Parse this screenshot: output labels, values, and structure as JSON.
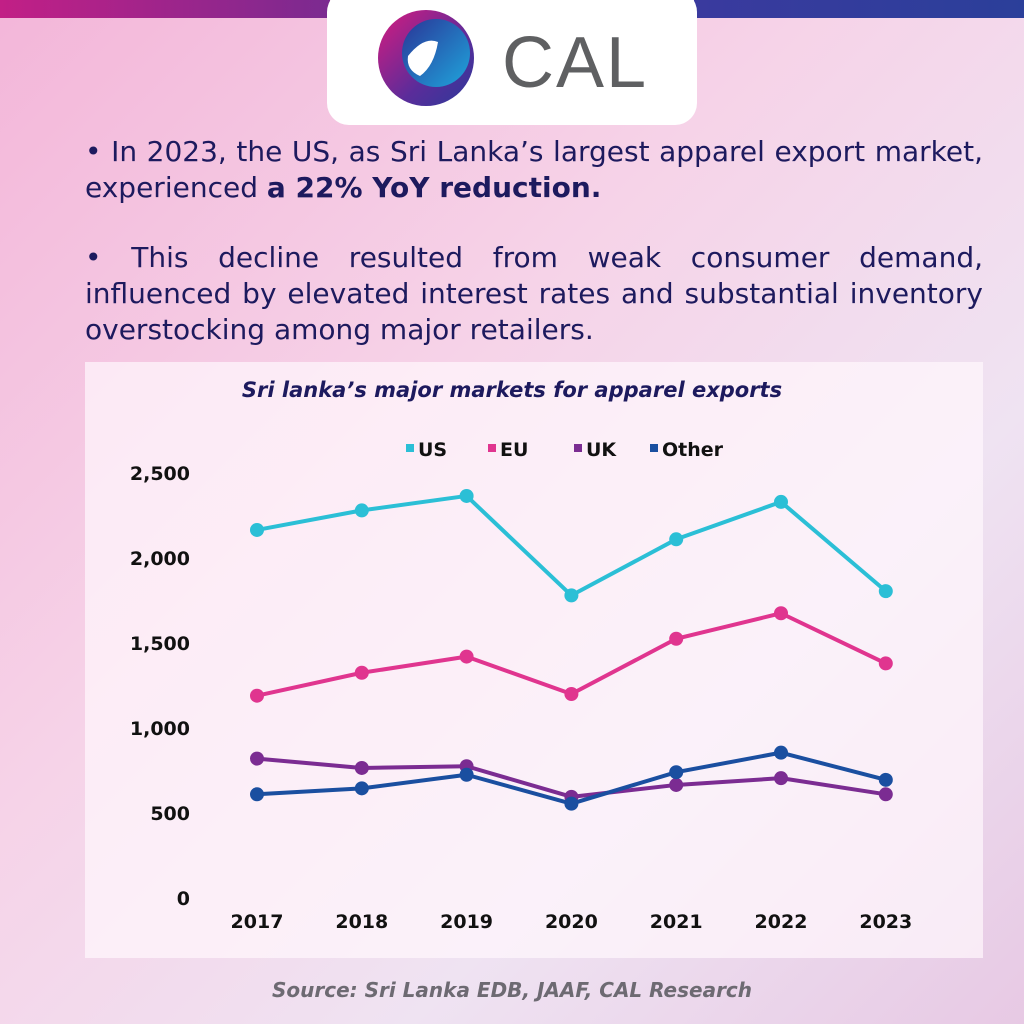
{
  "logo": {
    "text": "CAL"
  },
  "bullets": [
    {
      "text": "•  In 2023, the US, as Sri Lanka’s largest apparel export market, experienced ",
      "bold": "a 22% YoY reduction."
    },
    {
      "text": "•  This decline resulted from weak consumer demand, influenced by elevated interest rates and substantial inventory overstocking among major retailers.",
      "bold": ""
    }
  ],
  "source": "Source: Sri Lanka EDB, JAAF, CAL Research",
  "chart_data": {
    "type": "line",
    "title": "Sri lanka’s major markets for apparel exports",
    "categories": [
      "2017",
      "2018",
      "2019",
      "2020",
      "2021",
      "2022",
      "2023"
    ],
    "ylim": [
      0,
      2500
    ],
    "yticks": [
      0,
      500,
      1000,
      1500,
      2000,
      2500
    ],
    "ytick_labels": [
      "0",
      "500",
      "1,000",
      "1,500",
      "2,000",
      "2,500"
    ],
    "grid": false,
    "legend": "top",
    "series": [
      {
        "name": "US",
        "color": "#2bbfd6",
        "values": [
          2165,
          2280,
          2365,
          1780,
          2110,
          2330,
          1805
        ]
      },
      {
        "name": "EU",
        "color": "#e0358f",
        "values": [
          1190,
          1325,
          1420,
          1200,
          1525,
          1675,
          1380
        ]
      },
      {
        "name": "UK",
        "color": "#7b2c92",
        "values": [
          820,
          765,
          775,
          595,
          665,
          705,
          610
        ]
      },
      {
        "name": "Other",
        "color": "#1a4fa0",
        "values": [
          610,
          645,
          725,
          555,
          740,
          855,
          695
        ]
      }
    ]
  }
}
